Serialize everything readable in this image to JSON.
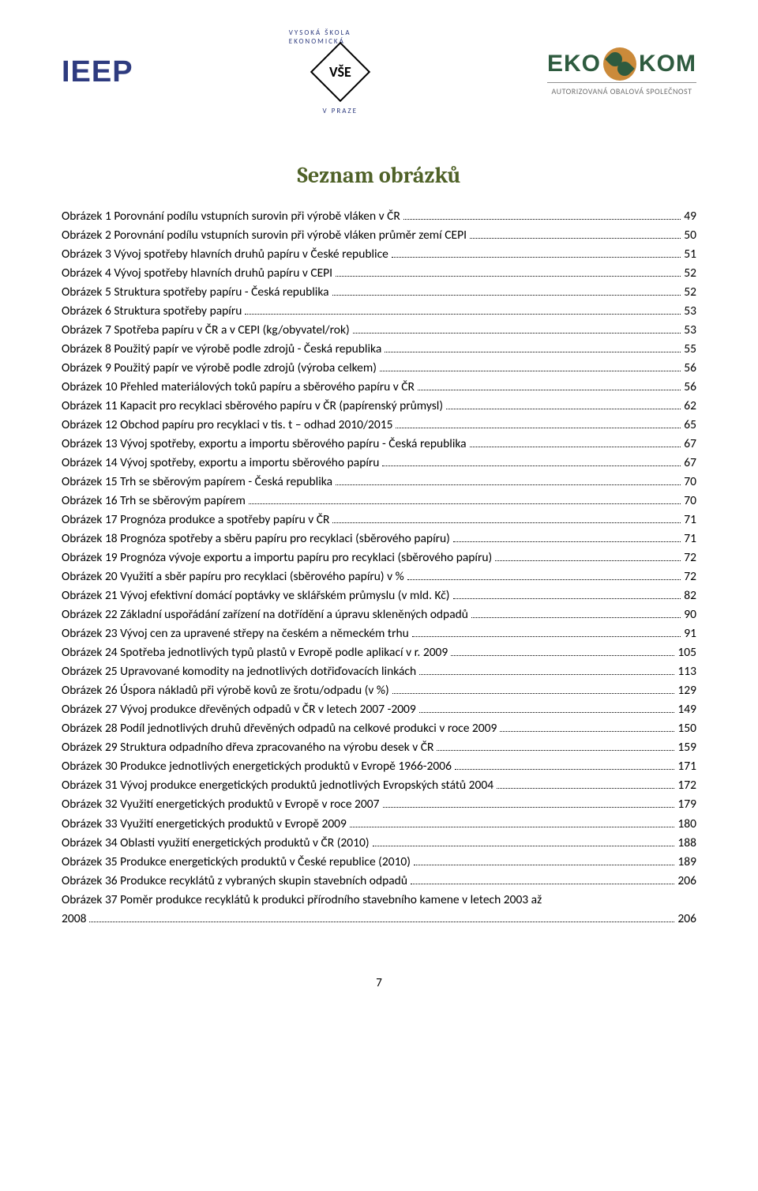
{
  "header": {
    "ieep": "IEEP",
    "vse_top": "VYSOKÁ ŠKOLA EKONOMICKÁ",
    "vse_label": "VŠE",
    "vse_bottom": "V  PRAZE",
    "ekokom_left": "EKO",
    "ekokom_right": "KOM",
    "ekokom_sub": "AUTORIZOVANÁ OBALOVÁ SPOLEČNOST"
  },
  "title": "Seznam obrázků",
  "entries": [
    {
      "label": "Obrázek 1 Porovnání podílu vstupních surovin při výrobě vláken v ČR",
      "page": "49"
    },
    {
      "label": "Obrázek 2 Porovnání podílu vstupních surovin při výrobě vláken průměr zemí CEPI",
      "page": "50"
    },
    {
      "label": "Obrázek 3 Vývoj spotřeby hlavních druhů papíru v České republice",
      "page": "51"
    },
    {
      "label": "Obrázek 4 Vývoj spotřeby hlavních druhů papíru v CEPI",
      "page": "52"
    },
    {
      "label": "Obrázek 5 Struktura spotřeby papíru - Česká republika",
      "page": "52"
    },
    {
      "label": "Obrázek 6 Struktura spotřeby papíru",
      "page": "53"
    },
    {
      "label": "Obrázek 7 Spotřeba papíru v ČR a v CEPI (kg/obyvatel/rok)",
      "page": "53"
    },
    {
      "label": "Obrázek 8 Použitý papír ve výrobě podle zdrojů - Česká republika",
      "page": "55"
    },
    {
      "label": "Obrázek 9 Použitý papír ve výrobě podle zdrojů (výroba celkem)",
      "page": "56"
    },
    {
      "label": "Obrázek 10 Přehled materiálových toků papíru a sběrového papíru v ČR",
      "page": "56"
    },
    {
      "label": "Obrázek 11 Kapacit pro recyklaci sběrového papíru v ČR (papírenský průmysl)",
      "page": "62"
    },
    {
      "label": "Obrázek 12 Obchod papíru pro recyklaci v tis. t – odhad 2010/2015",
      "page": "65"
    },
    {
      "label": "Obrázek 13 Vývoj spotřeby, exportu a importu sběrového papíru - Česká republika",
      "page": "67"
    },
    {
      "label": "Obrázek 14 Vývoj spotřeby, exportu a importu sběrového papíru",
      "page": "67"
    },
    {
      "label": "Obrázek 15 Trh se sběrovým papírem - Česká republika",
      "page": "70"
    },
    {
      "label": "Obrázek 16 Trh se sběrovým papírem",
      "page": "70"
    },
    {
      "label": "Obrázek 17 Prognóza produkce a spotřeby papíru v ČR",
      "page": "71"
    },
    {
      "label": "Obrázek 18 Prognóza spotřeby a sběru papíru pro recyklaci (sběrového papíru)",
      "page": "71"
    },
    {
      "label": "Obrázek 19 Prognóza vývoje exportu a importu papíru pro recyklaci (sběrového papíru)",
      "page": "72"
    },
    {
      "label": "Obrázek 20 Využití a sběr papíru pro recyklaci (sběrového papíru) v %",
      "page": "72"
    },
    {
      "label": "Obrázek 21 Vývoj efektivní domácí poptávky ve sklářském průmyslu (v mld. Kč)",
      "page": "82"
    },
    {
      "label": "Obrázek 22 Základní uspořádání zařízení na dotřídění a úpravu skleněných odpadů",
      "page": "90"
    },
    {
      "label": "Obrázek 23 Vývoj cen za upravené střepy na českém a německém trhu",
      "page": "91"
    },
    {
      "label": "Obrázek 24 Spotřeba jednotlivých typů plastů v Evropě podle aplikací v r. 2009",
      "page": "105"
    },
    {
      "label": "Obrázek 25 Upravované komodity na jednotlivých dotřiďovacích linkách",
      "page": "113"
    },
    {
      "label": "Obrázek 26 Úspora nákladů při výrobě kovů ze šrotu/odpadu (v %)",
      "page": "129"
    },
    {
      "label": "Obrázek 27 Vývoj produkce dřevěných odpadů v ČR v letech 2007 -2009",
      "page": "149"
    },
    {
      "label": "Obrázek 28 Podíl jednotlivých druhů dřevěných odpadů na celkové produkci v roce 2009",
      "page": "150"
    },
    {
      "label": "Obrázek 29 Struktura odpadního dřeva zpracovaného na výrobu desek v ČR",
      "page": "159"
    },
    {
      "label": "Obrázek 30 Produkce jednotlivých energetických produktů v Evropě 1966-2006",
      "page": "171"
    },
    {
      "label": "Obrázek 31 Vývoj produkce energetických produktů jednotlivých Evropských států 2004",
      "page": "172"
    },
    {
      "label": "Obrázek 32 Využití energetických produktů v Evropě v roce 2007",
      "page": "179"
    },
    {
      "label": "Obrázek 33 Využití energetických produktů v Evropě 2009",
      "page": "180"
    },
    {
      "label": "Obrázek 34 Oblasti využití energetických produktů v ČR (2010)",
      "page": "188"
    },
    {
      "label": "Obrázek 35 Produkce energetických produktů v České republice (2010)",
      "page": "189"
    },
    {
      "label": "Obrázek 36 Produkce recyklátů z vybraných skupin stavebních odpadů",
      "page": "206"
    },
    {
      "label": "Obrázek 37 Poměr produkce recyklátů k produkci přírodního stavebního kamene v letech 2003 až",
      "label2": "2008",
      "page": "206",
      "wrap": true
    }
  ],
  "page_number": "7"
}
